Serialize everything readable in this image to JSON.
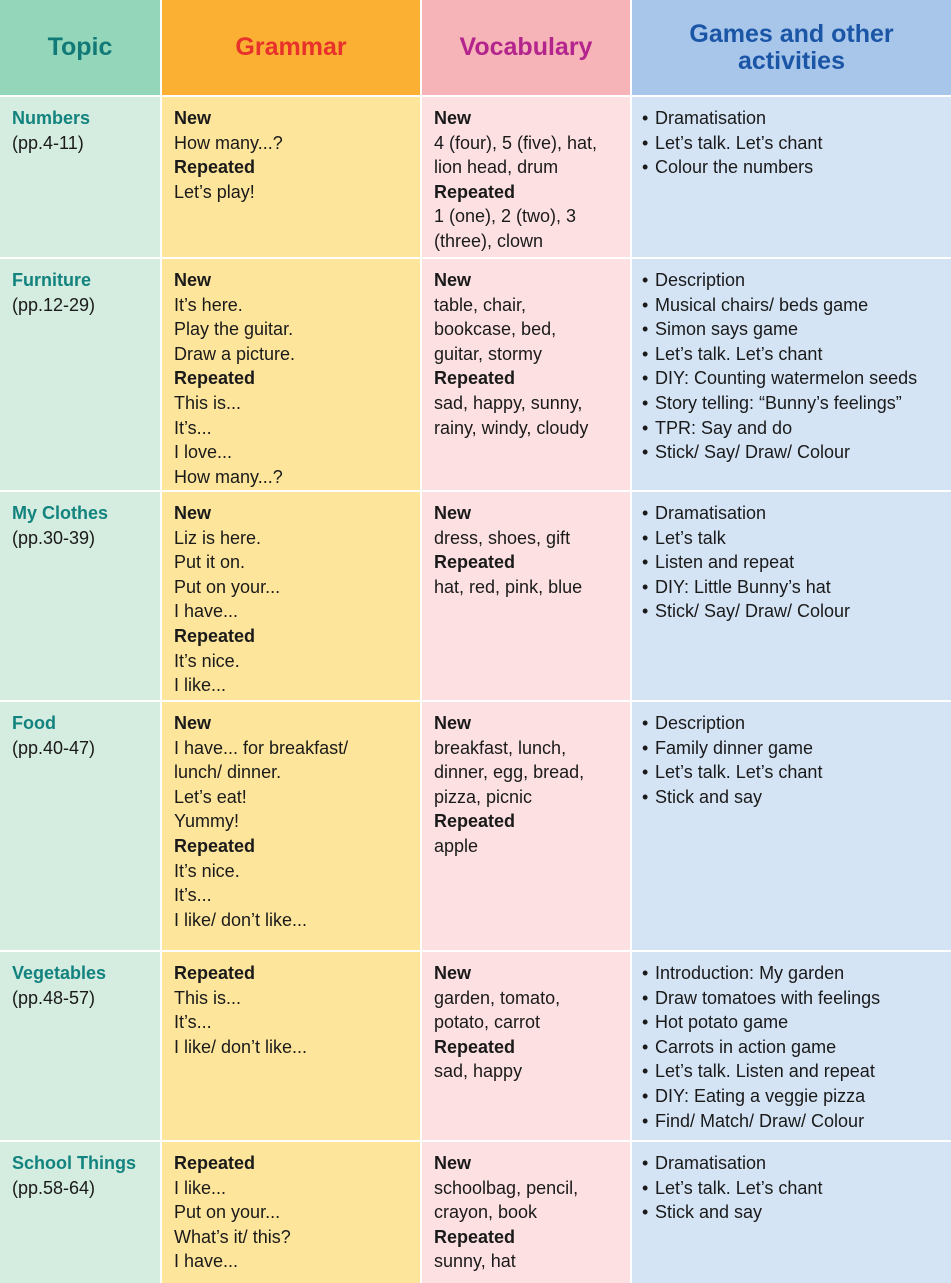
{
  "header": {
    "columns": [
      "Topic",
      "Grammar",
      "Vocabulary",
      "Games and other activities"
    ]
  },
  "rows": [
    {
      "topic": "Numbers",
      "pages": "(pp.4-11)",
      "grammar": [
        {
          "label": "New",
          "lines": [
            "How many...?"
          ]
        },
        {
          "label": "Repeated",
          "lines": [
            "Let’s play!"
          ]
        }
      ],
      "vocabulary": [
        {
          "label": "New",
          "lines": [
            "4 (four), 5 (five), hat,",
            "lion head, drum"
          ]
        },
        {
          "label": "Repeated",
          "lines": [
            "1 (one), 2 (two), 3",
            "(three), clown"
          ]
        }
      ],
      "activities": [
        "Dramatisation",
        "Let’s talk. Let’s chant",
        "Colour the numbers"
      ]
    },
    {
      "topic": "Furniture",
      "pages": "(pp.12-29)",
      "grammar": [
        {
          "label": "New",
          "lines": [
            "It’s here.",
            "Play the guitar.",
            "Draw a picture."
          ]
        },
        {
          "label": "Repeated",
          "lines": [
            "This is...",
            "It’s...",
            "I love...",
            "How many...?"
          ]
        }
      ],
      "vocabulary": [
        {
          "label": "New",
          "lines": [
            "table, chair,",
            "bookcase, bed,",
            "guitar, stormy"
          ]
        },
        {
          "label": "Repeated",
          "lines": [
            "sad, happy, sunny,",
            "rainy, windy, cloudy"
          ]
        }
      ],
      "activities": [
        "Description",
        "Musical chairs/ beds game",
        "Simon says game",
        "Let’s talk. Let’s chant",
        "DIY: Counting watermelon seeds",
        "Story telling: “Bunny’s feelings”",
        "TPR: Say and do",
        "Stick/ Say/ Draw/ Colour"
      ]
    },
    {
      "topic": "My Clothes",
      "pages": "(pp.30-39)",
      "grammar": [
        {
          "label": "New",
          "lines": [
            "Liz is here.",
            "Put it on.",
            "Put on your...",
            "I have..."
          ]
        },
        {
          "label": "Repeated",
          "lines": [
            "It’s nice.",
            "I like..."
          ]
        }
      ],
      "vocabulary": [
        {
          "label": "New",
          "lines": [
            "dress, shoes, gift"
          ]
        },
        {
          "label": "Repeated",
          "lines": [
            "hat, red, pink, blue"
          ]
        }
      ],
      "activities": [
        "Dramatisation",
        "Let’s talk",
        "Listen and repeat",
        "DIY: Little Bunny’s hat",
        "Stick/ Say/ Draw/ Colour"
      ]
    },
    {
      "topic": "Food",
      "pages": "(pp.40-47)",
      "grammar": [
        {
          "label": "New",
          "lines": [
            "I have... for breakfast/",
            "lunch/ dinner.",
            "Let’s eat!",
            "Yummy!"
          ]
        },
        {
          "label": "Repeated",
          "lines": [
            "It’s nice.",
            "It’s...",
            "I like/ don’t like..."
          ]
        }
      ],
      "vocabulary": [
        {
          "label": "New",
          "lines": [
            "breakfast, lunch,",
            "dinner, egg, bread,",
            "pizza, picnic"
          ]
        },
        {
          "label": "Repeated",
          "lines": [
            "apple"
          ]
        }
      ],
      "activities": [
        "Description",
        "Family dinner game",
        "Let’s talk. Let’s chant",
        "Stick and say"
      ]
    },
    {
      "topic": "Vegetables",
      "pages": "(pp.48-57)",
      "grammar": [
        {
          "label": "Repeated",
          "lines": [
            "This is...",
            "It’s...",
            "I like/ don’t like..."
          ]
        }
      ],
      "vocabulary": [
        {
          "label": "New",
          "lines": [
            "garden, tomato,",
            "potato, carrot"
          ]
        },
        {
          "label": "Repeated",
          "lines": [
            "sad, happy"
          ]
        }
      ],
      "activities": [
        "Introduction: My garden",
        "Draw tomatoes with feelings",
        "Hot potato game",
        "Carrots in action game",
        "Let’s talk. Listen and repeat",
        "DIY: Eating a veggie pizza",
        "Find/ Match/ Draw/ Colour"
      ]
    },
    {
      "topic": "School Things",
      "pages": "(pp.58-64)",
      "grammar": [
        {
          "label": "Repeated",
          "lines": [
            "I like...",
            "Put on your...",
            "What’s it/ this?",
            "I have..."
          ]
        }
      ],
      "vocabulary": [
        {
          "label": "New",
          "lines": [
            "schoolbag, pencil,",
            "crayon, book"
          ]
        },
        {
          "label": "Repeated",
          "lines": [
            "sunny, hat"
          ]
        }
      ],
      "activities": [
        "Dramatisation",
        "Let’s talk. Let’s chant",
        "Stick and say"
      ]
    }
  ]
}
